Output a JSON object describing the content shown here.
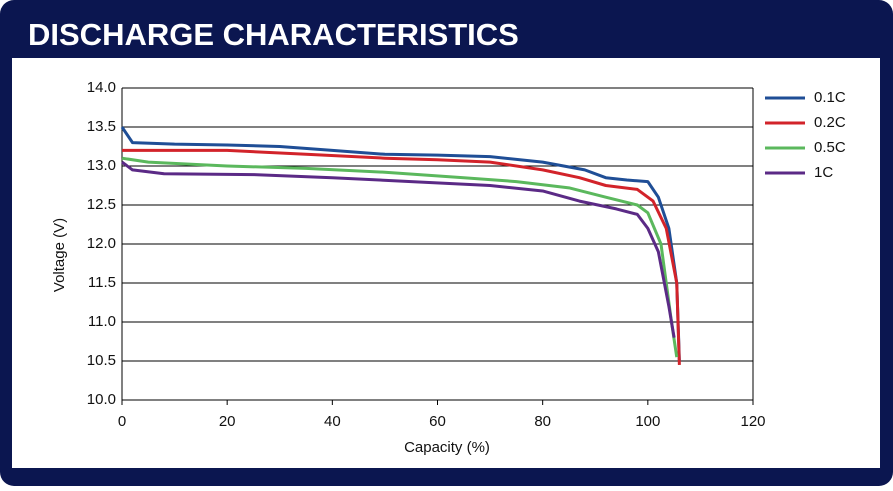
{
  "chart_data": {
    "type": "line",
    "title": "DISCHARGE CHARACTERISTICS",
    "x_label": "Capacity (%)",
    "y_label": "Voltage (V)",
    "xlim": [
      0,
      120
    ],
    "xticks": [
      0,
      20,
      40,
      60,
      80,
      100,
      120
    ],
    "ylim": [
      10,
      14
    ],
    "yticks": [
      {
        "value": 10,
        "label": "10.0"
      },
      10.5,
      {
        "value": 11,
        "label": "11.0"
      },
      11.5,
      {
        "value": 12,
        "label": "12.0"
      },
      12.5,
      {
        "value": 13,
        "label": "13.0"
      },
      13.5,
      {
        "value": 14,
        "label": "14.0"
      }
    ],
    "grid": true,
    "legend": "right",
    "series": [
      {
        "name": "0.1C",
        "color": "#1f4e96",
        "x": [
          0,
          2,
          10,
          20,
          30,
          40,
          50,
          60,
          70,
          80,
          88,
          92,
          96,
          100,
          102,
          104,
          105.5,
          106
        ],
        "values": [
          13.5,
          13.3,
          13.28,
          13.27,
          13.25,
          13.2,
          13.15,
          13.14,
          13.12,
          13.05,
          12.95,
          12.85,
          12.82,
          12.8,
          12.6,
          12.2,
          11.5,
          10.5
        ]
      },
      {
        "name": "0.2C",
        "color": "#d2232a",
        "x": [
          0,
          20,
          35,
          50,
          60,
          70,
          80,
          87,
          92,
          98,
          101,
          103.5,
          105.5,
          106
        ],
        "values": [
          13.2,
          13.2,
          13.15,
          13.1,
          13.08,
          13.05,
          12.95,
          12.85,
          12.75,
          12.7,
          12.55,
          12.2,
          11.5,
          10.45
        ]
      },
      {
        "name": "0.5C",
        "color": "#5bb85d",
        "x": [
          0,
          5,
          20,
          35,
          50,
          65,
          75,
          85,
          92,
          98,
          100,
          102.5,
          104.5,
          105.5
        ],
        "values": [
          13.1,
          13.05,
          13.0,
          12.97,
          12.92,
          12.85,
          12.8,
          12.72,
          12.6,
          12.5,
          12.4,
          12.0,
          11.0,
          10.55
        ]
      },
      {
        "name": "1C",
        "color": "#5b2a86",
        "x": [
          0,
          2,
          8,
          25,
          40,
          55,
          70,
          80,
          87,
          94,
          98,
          100,
          102,
          104,
          105
        ],
        "values": [
          13.05,
          12.95,
          12.9,
          12.89,
          12.85,
          12.8,
          12.75,
          12.68,
          12.55,
          12.45,
          12.38,
          12.2,
          11.9,
          11.2,
          10.8
        ]
      }
    ]
  }
}
